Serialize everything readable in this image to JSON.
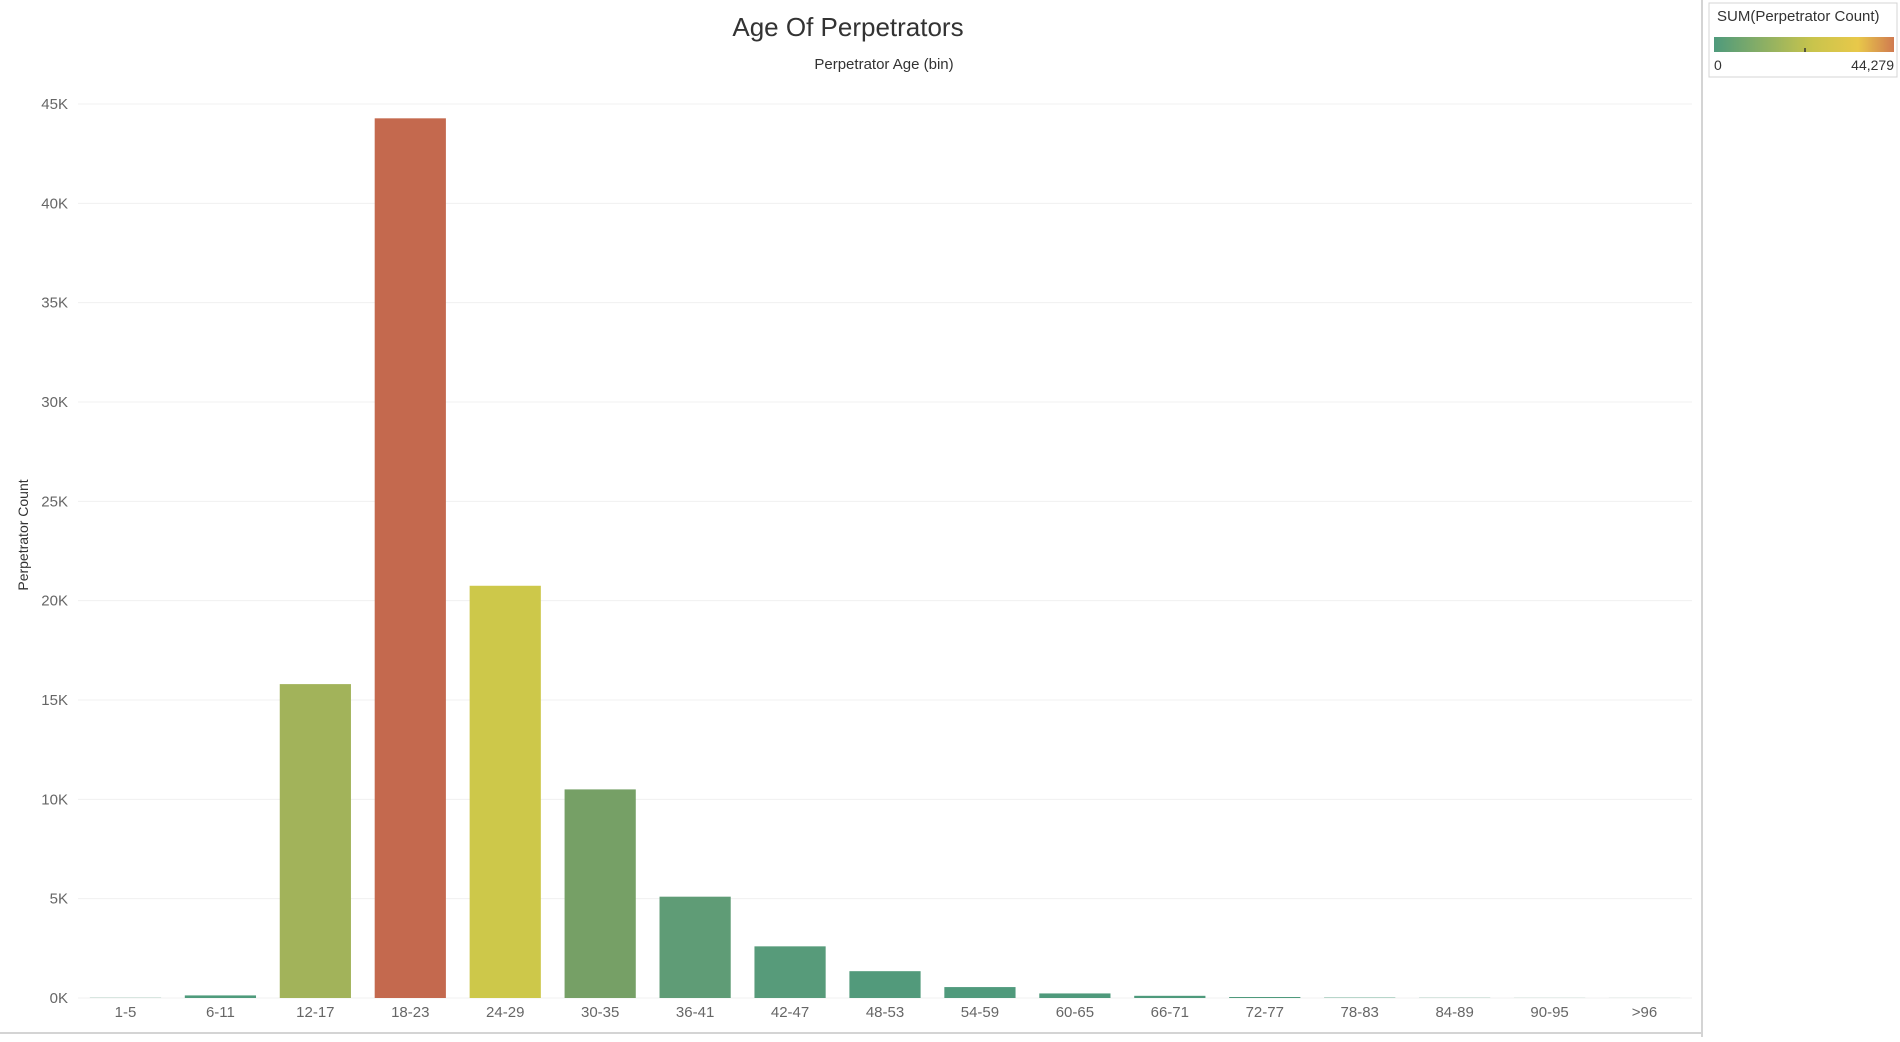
{
  "colors": {
    "low": "#4e9a7c",
    "mid": "#e8c84a",
    "high": "#c4694e",
    "gridline": "#f0f0f0",
    "axis_text": "#666666"
  },
  "legend": {
    "title": "SUM(Perpetrator Count)",
    "min_label": "0",
    "max_label": "44,279"
  },
  "chart_data": {
    "type": "bar",
    "title": "Age Of Perpetrators",
    "xlabel": "Perpetrator Age (bin)",
    "ylabel": "Perpetrator Count",
    "x_axis_position": "top",
    "ylim": [
      0,
      45000
    ],
    "y_ticks": [
      0,
      5000,
      10000,
      15000,
      20000,
      25000,
      30000,
      35000,
      40000,
      45000
    ],
    "y_tick_labels": [
      "0K",
      "5K",
      "10K",
      "15K",
      "20K",
      "25K",
      "30K",
      "35K",
      "40K",
      "45K"
    ],
    "grid": true,
    "legend_position": "top-right",
    "categories": [
      "1-5",
      "6-11",
      "12-17",
      "18-23",
      "24-29",
      "30-35",
      "36-41",
      "42-47",
      "48-53",
      "54-59",
      "60-65",
      "66-71",
      "72-77",
      "78-83",
      "84-89",
      "90-95",
      ">96"
    ],
    "values": [
      10,
      130,
      15800,
      44279,
      20750,
      10500,
      5100,
      2600,
      1350,
      550,
      230,
      110,
      50,
      20,
      10,
      5,
      3
    ],
    "bar_colors": [
      "#4e9a7c",
      "#4f9b7c",
      "#a2b35a",
      "#c4694e",
      "#cdc84a",
      "#76a066",
      "#5f9c76",
      "#579b7a",
      "#529a7b",
      "#509a7c",
      "#4f9a7c",
      "#4e9a7c",
      "#4e9a7c",
      "#4e9a7c",
      "#4e9a7c",
      "#4e9a7c",
      "#4e9a7c"
    ]
  }
}
